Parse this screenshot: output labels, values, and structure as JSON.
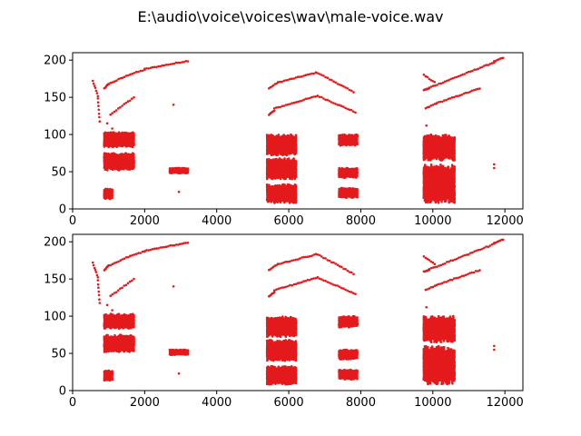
{
  "figure": {
    "title": "E:\\audio\\voice\\voices\\wav\\male-voice.wav"
  },
  "colors": {
    "marker": "#e41a1c",
    "axis": "#000000",
    "background": "#ffffff"
  },
  "chart_data": [
    {
      "type": "scatter",
      "xlim": [
        0,
        12500
      ],
      "ylim": [
        0,
        210
      ],
      "xticks": [
        0,
        2000,
        4000,
        6000,
        8000,
        10000,
        12000
      ],
      "yticks": [
        0,
        50,
        100,
        150,
        200
      ],
      "grid": false,
      "legend": "none",
      "segments": [
        {
          "x0": 560,
          "x1": 700,
          "y0": 172,
          "y1": 152
        },
        {
          "x0": 700,
          "x1": 750,
          "y0": 148,
          "y1": 118
        },
        {
          "x0": 880,
          "x1": 1000,
          "y0": 162,
          "y1": 168
        },
        {
          "x0": 1000,
          "x1": 1600,
          "y0": 168,
          "y1": 181
        },
        {
          "x0": 1600,
          "x1": 2000,
          "y0": 181,
          "y1": 187
        },
        {
          "x0": 2000,
          "x1": 3200,
          "y0": 188,
          "y1": 199
        },
        {
          "x0": 1050,
          "x1": 1700,
          "y0": 127,
          "y1": 150
        },
        {
          "x0": 5450,
          "x1": 5700,
          "y0": 162,
          "y1": 170
        },
        {
          "x0": 5700,
          "x1": 6750,
          "y0": 170,
          "y1": 183
        },
        {
          "x0": 6800,
          "x1": 7800,
          "y0": 183,
          "y1": 157
        },
        {
          "x0": 5450,
          "x1": 5600,
          "y0": 127,
          "y1": 132
        },
        {
          "x0": 5600,
          "x1": 6800,
          "y0": 135,
          "y1": 152
        },
        {
          "x0": 6800,
          "x1": 7850,
          "y0": 152,
          "y1": 130
        },
        {
          "x0": 9750,
          "x1": 10050,
          "y0": 180,
          "y1": 170
        },
        {
          "x0": 9750,
          "x1": 9900,
          "y0": 160,
          "y1": 162
        },
        {
          "x0": 9900,
          "x1": 11700,
          "y0": 163,
          "y1": 197
        },
        {
          "x0": 11700,
          "x1": 11950,
          "y0": 198,
          "y1": 203
        },
        {
          "x0": 9800,
          "x1": 10100,
          "y0": 135,
          "y1": 142
        },
        {
          "x0": 10100,
          "x1": 11300,
          "y0": 142,
          "y1": 162
        }
      ],
      "clusters": [
        {
          "x0": 880,
          "x1": 1100,
          "y0": 13,
          "y1": 27
        },
        {
          "x0": 880,
          "x1": 1700,
          "y0": 52,
          "y1": 75
        },
        {
          "x0": 880,
          "x1": 1700,
          "y0": 83,
          "y1": 103
        },
        {
          "x0": 2700,
          "x1": 3200,
          "y0": 48,
          "y1": 55
        },
        {
          "x0": 5400,
          "x1": 6200,
          "y0": 8,
          "y1": 33
        },
        {
          "x0": 5400,
          "x1": 6200,
          "y0": 40,
          "y1": 68
        },
        {
          "x0": 5400,
          "x1": 6200,
          "y0": 72,
          "y1": 100
        },
        {
          "x0": 7400,
          "x1": 7900,
          "y0": 15,
          "y1": 28
        },
        {
          "x0": 7400,
          "x1": 7900,
          "y0": 42,
          "y1": 55
        },
        {
          "x0": 7400,
          "x1": 7900,
          "y0": 85,
          "y1": 100
        },
        {
          "x0": 9750,
          "x1": 10600,
          "y0": 8,
          "y1": 60
        },
        {
          "x0": 9750,
          "x1": 10600,
          "y0": 65,
          "y1": 100
        }
      ],
      "isolated_points": [
        {
          "x": 960,
          "y": 115
        },
        {
          "x": 1100,
          "y": 108
        },
        {
          "x": 2800,
          "y": 140
        },
        {
          "x": 2950,
          "y": 23
        },
        {
          "x": 11700,
          "y": 55
        },
        {
          "x": 11700,
          "y": 60
        },
        {
          "x": 9820,
          "y": 112
        },
        {
          "x": 1150,
          "y": 100
        }
      ]
    },
    {
      "type": "scatter",
      "xlim": [
        0,
        12500
      ],
      "ylim": [
        0,
        210
      ],
      "xticks": [
        0,
        2000,
        4000,
        6000,
        8000,
        10000,
        12000
      ],
      "yticks": [
        0,
        50,
        100,
        150,
        200
      ],
      "grid": false,
      "legend": "none",
      "segments": [
        {
          "x0": 560,
          "x1": 700,
          "y0": 172,
          "y1": 152
        },
        {
          "x0": 700,
          "x1": 750,
          "y0": 148,
          "y1": 118
        },
        {
          "x0": 880,
          "x1": 1000,
          "y0": 162,
          "y1": 168
        },
        {
          "x0": 1000,
          "x1": 1600,
          "y0": 168,
          "y1": 181
        },
        {
          "x0": 1600,
          "x1": 2000,
          "y0": 181,
          "y1": 187
        },
        {
          "x0": 2000,
          "x1": 3200,
          "y0": 188,
          "y1": 199
        },
        {
          "x0": 1050,
          "x1": 1700,
          "y0": 127,
          "y1": 150
        },
        {
          "x0": 5450,
          "x1": 5700,
          "y0": 162,
          "y1": 170
        },
        {
          "x0": 5700,
          "x1": 6750,
          "y0": 170,
          "y1": 183
        },
        {
          "x0": 6800,
          "x1": 7800,
          "y0": 183,
          "y1": 157
        },
        {
          "x0": 5450,
          "x1": 5600,
          "y0": 127,
          "y1": 132
        },
        {
          "x0": 5600,
          "x1": 6800,
          "y0": 135,
          "y1": 152
        },
        {
          "x0": 6800,
          "x1": 7850,
          "y0": 152,
          "y1": 130
        },
        {
          "x0": 9750,
          "x1": 10050,
          "y0": 180,
          "y1": 170
        },
        {
          "x0": 9750,
          "x1": 9900,
          "y0": 160,
          "y1": 162
        },
        {
          "x0": 9900,
          "x1": 11700,
          "y0": 163,
          "y1": 197
        },
        {
          "x0": 11700,
          "x1": 11950,
          "y0": 198,
          "y1": 203
        },
        {
          "x0": 9800,
          "x1": 10100,
          "y0": 135,
          "y1": 142
        },
        {
          "x0": 10100,
          "x1": 11300,
          "y0": 142,
          "y1": 162
        }
      ],
      "clusters": [
        {
          "x0": 880,
          "x1": 1100,
          "y0": 13,
          "y1": 27
        },
        {
          "x0": 880,
          "x1": 1700,
          "y0": 52,
          "y1": 75
        },
        {
          "x0": 880,
          "x1": 1700,
          "y0": 83,
          "y1": 103
        },
        {
          "x0": 2700,
          "x1": 3200,
          "y0": 48,
          "y1": 55
        },
        {
          "x0": 5400,
          "x1": 6200,
          "y0": 8,
          "y1": 33
        },
        {
          "x0": 5400,
          "x1": 6200,
          "y0": 40,
          "y1": 68
        },
        {
          "x0": 5400,
          "x1": 6200,
          "y0": 72,
          "y1": 100
        },
        {
          "x0": 7400,
          "x1": 7900,
          "y0": 15,
          "y1": 28
        },
        {
          "x0": 7400,
          "x1": 7900,
          "y0": 42,
          "y1": 55
        },
        {
          "x0": 7400,
          "x1": 7900,
          "y0": 85,
          "y1": 100
        },
        {
          "x0": 9750,
          "x1": 10600,
          "y0": 8,
          "y1": 60
        },
        {
          "x0": 9750,
          "x1": 10600,
          "y0": 65,
          "y1": 100
        }
      ],
      "isolated_points": [
        {
          "x": 960,
          "y": 115
        },
        {
          "x": 1100,
          "y": 108
        },
        {
          "x": 2800,
          "y": 140
        },
        {
          "x": 2950,
          "y": 23
        },
        {
          "x": 11700,
          "y": 55
        },
        {
          "x": 11700,
          "y": 60
        },
        {
          "x": 9820,
          "y": 112
        },
        {
          "x": 1150,
          "y": 100
        }
      ]
    }
  ]
}
